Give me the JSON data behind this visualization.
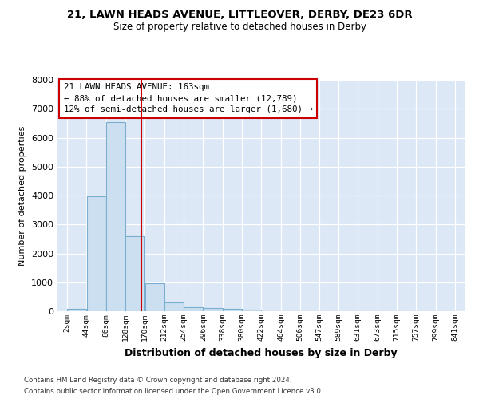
{
  "title_main": "21, LAWN HEADS AVENUE, LITTLEOVER, DERBY, DE23 6DR",
  "title_sub": "Size of property relative to detached houses in Derby",
  "xlabel": "Distribution of detached houses by size in Derby",
  "ylabel": "Number of detached properties",
  "bar_color": "#ccdff0",
  "bar_edge_color": "#7aaed0",
  "bin_edges": [
    2,
    44,
    86,
    128,
    170,
    212,
    254,
    296,
    338,
    380,
    422,
    464,
    506,
    547,
    589,
    631,
    673,
    715,
    757,
    799,
    841
  ],
  "bar_heights": [
    75,
    3980,
    6550,
    2600,
    960,
    310,
    130,
    110,
    80,
    60,
    0,
    0,
    0,
    0,
    0,
    0,
    0,
    0,
    0,
    0
  ],
  "property_size": 163,
  "vline_color": "#cc0000",
  "annotation_text": "21 LAWN HEADS AVENUE: 163sqm\n← 88% of detached houses are smaller (12,789)\n12% of semi-detached houses are larger (1,680) →",
  "annotation_box_color": "#cc0000",
  "footnote1": "Contains HM Land Registry data © Crown copyright and database right 2024.",
  "footnote2": "Contains public sector information licensed under the Open Government Licence v3.0.",
  "ylim": [
    0,
    8000
  ],
  "background_color": "#dce8f5",
  "fig_background": "#ffffff"
}
